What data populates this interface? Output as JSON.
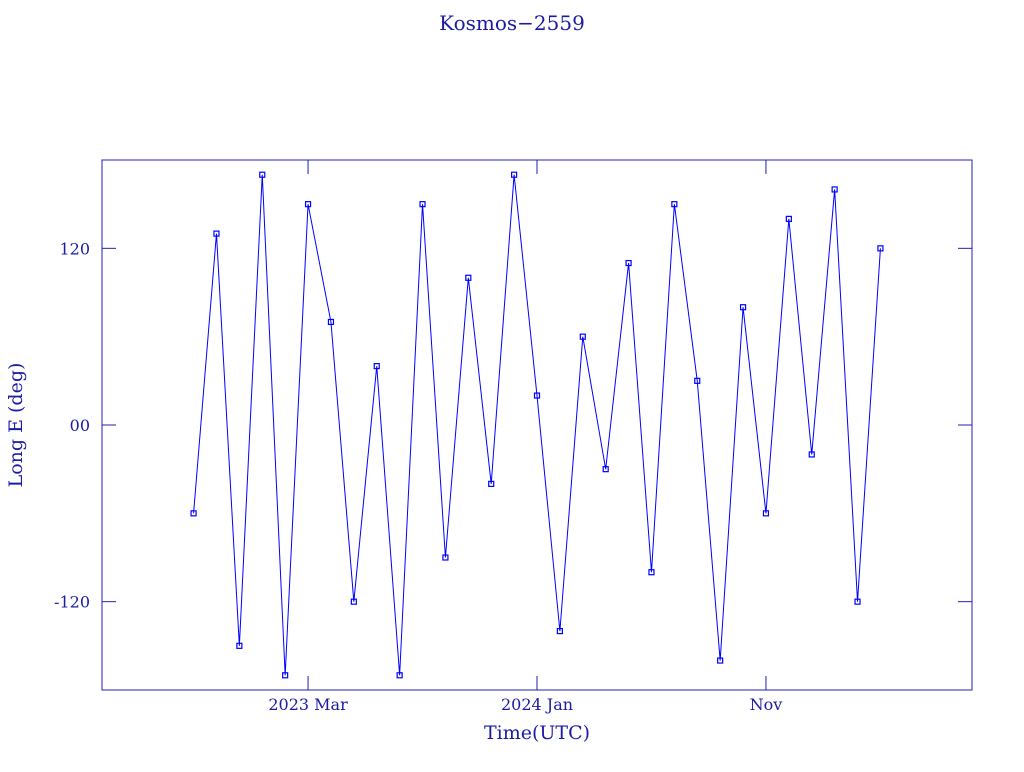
{
  "chart_data": {
    "type": "line",
    "title": "Kosmos−2559",
    "x_label": "Time(UTC)",
    "y_label": "Long E (deg)",
    "x": [
      "2022-10",
      "2022-11",
      "2022-12",
      "2023-01",
      "2023-02",
      "2023-03",
      "2023-04",
      "2023-05",
      "2023-06",
      "2023-07",
      "2023-08",
      "2023-09",
      "2023-10",
      "2023-11",
      "2023-12",
      "2024-01",
      "2024-02",
      "2024-03",
      "2024-04",
      "2024-05",
      "2024-06",
      "2024-07",
      "2024-08",
      "2024-09",
      "2024-10",
      "2024-11",
      "2024-12",
      "2025-01",
      "2025-02",
      "2025-03",
      "2025-04"
    ],
    "series": [
      {
        "name": "Kosmos−2559",
        "color": "#0000ff",
        "values": [
          -60,
          130,
          -150,
          170,
          -170,
          150,
          70,
          -120,
          40,
          -170,
          150,
          -90,
          100,
          -40,
          170,
          20,
          -140,
          60,
          -30,
          110,
          -100,
          150,
          30,
          -160,
          80,
          -60,
          140,
          -20,
          160,
          -120,
          120
        ]
      }
    ],
    "xlim": [
      "2022-06",
      "2025-08"
    ],
    "xticks": [
      {
        "value": "2023-03",
        "label": "2023 Mar"
      },
      {
        "value": "2024-01",
        "label": "2024 Jan"
      },
      {
        "value": "2024-11",
        "label": "Nov"
      }
    ],
    "ylim": [
      -180,
      180
    ],
    "yticks": [
      -120,
      {
        "value": 0,
        "label": "00"
      },
      120
    ],
    "frame_color": "#2020b0"
  }
}
